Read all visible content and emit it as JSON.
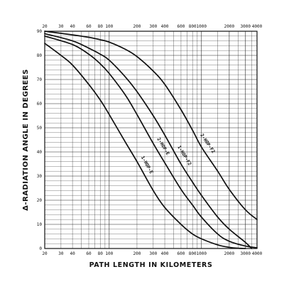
{
  "chart_data": {
    "type": "line",
    "title": "",
    "xlabel": "PATH LENGTH IN KILOMETERS",
    "ylabel": "Δ-RADIATION ANGLE IN DEGREES",
    "xscale": "log",
    "xlim": [
      20,
      4000
    ],
    "ylim": [
      0,
      90
    ],
    "grid": true,
    "x_tick_labels_bottom": [
      "20",
      "30",
      "40",
      "60",
      "80",
      "100",
      "200",
      "300",
      "400",
      "600",
      "800",
      "1000",
      "2000",
      "3000",
      "4000"
    ],
    "x_tick_labels_top": [
      "20",
      "30",
      "40",
      "60",
      "80",
      "100",
      "200",
      "300",
      "400",
      "600",
      "800",
      "1000",
      "2000",
      "3000",
      "4000"
    ],
    "y_tick_labels": [
      "0",
      "10",
      "20",
      "30",
      "40",
      "50",
      "60",
      "70",
      "80",
      "90"
    ],
    "series": [
      {
        "name": "1-HOP-E",
        "x": [
          20,
          30,
          40,
          60,
          80,
          100,
          150,
          200,
          300,
          400,
          600,
          800,
          1000,
          1500,
          2000,
          2500,
          3000
        ],
        "y": [
          85,
          80,
          76,
          68,
          61.5,
          55.5,
          44,
          36,
          24,
          17,
          10,
          6,
          4,
          1.5,
          0.5,
          0.1,
          0
        ]
      },
      {
        "name": "2-HOP-E",
        "x": [
          20,
          40,
          60,
          80,
          100,
          150,
          200,
          300,
          400,
          600,
          800,
          1000,
          1500,
          2000,
          3000,
          4000
        ],
        "y": [
          88,
          84.5,
          80.5,
          76.5,
          72.5,
          63.5,
          55.5,
          43.5,
          35.5,
          24.5,
          18,
          13,
          6,
          3,
          1,
          0.3
        ]
      },
      {
        "name": "1-HOP-F2",
        "x": [
          20,
          40,
          60,
          80,
          100,
          150,
          200,
          300,
          400,
          600,
          800,
          1000,
          1500,
          2000,
          3000,
          3500
        ],
        "y": [
          89,
          86,
          83,
          80.5,
          78,
          71,
          65,
          55,
          47,
          35,
          27.5,
          22,
          13,
          8,
          2.5,
          0
        ]
      },
      {
        "name": "2-HOP-F2",
        "x": [
          20,
          40,
          60,
          80,
          100,
          150,
          200,
          300,
          400,
          600,
          800,
          1000,
          1500,
          2000,
          3000,
          4000
        ],
        "y": [
          90,
          88.5,
          87.5,
          86.5,
          85.5,
          82.5,
          79.5,
          73.5,
          68,
          57.5,
          49,
          42,
          32,
          24.5,
          16,
          12
        ]
      }
    ]
  }
}
